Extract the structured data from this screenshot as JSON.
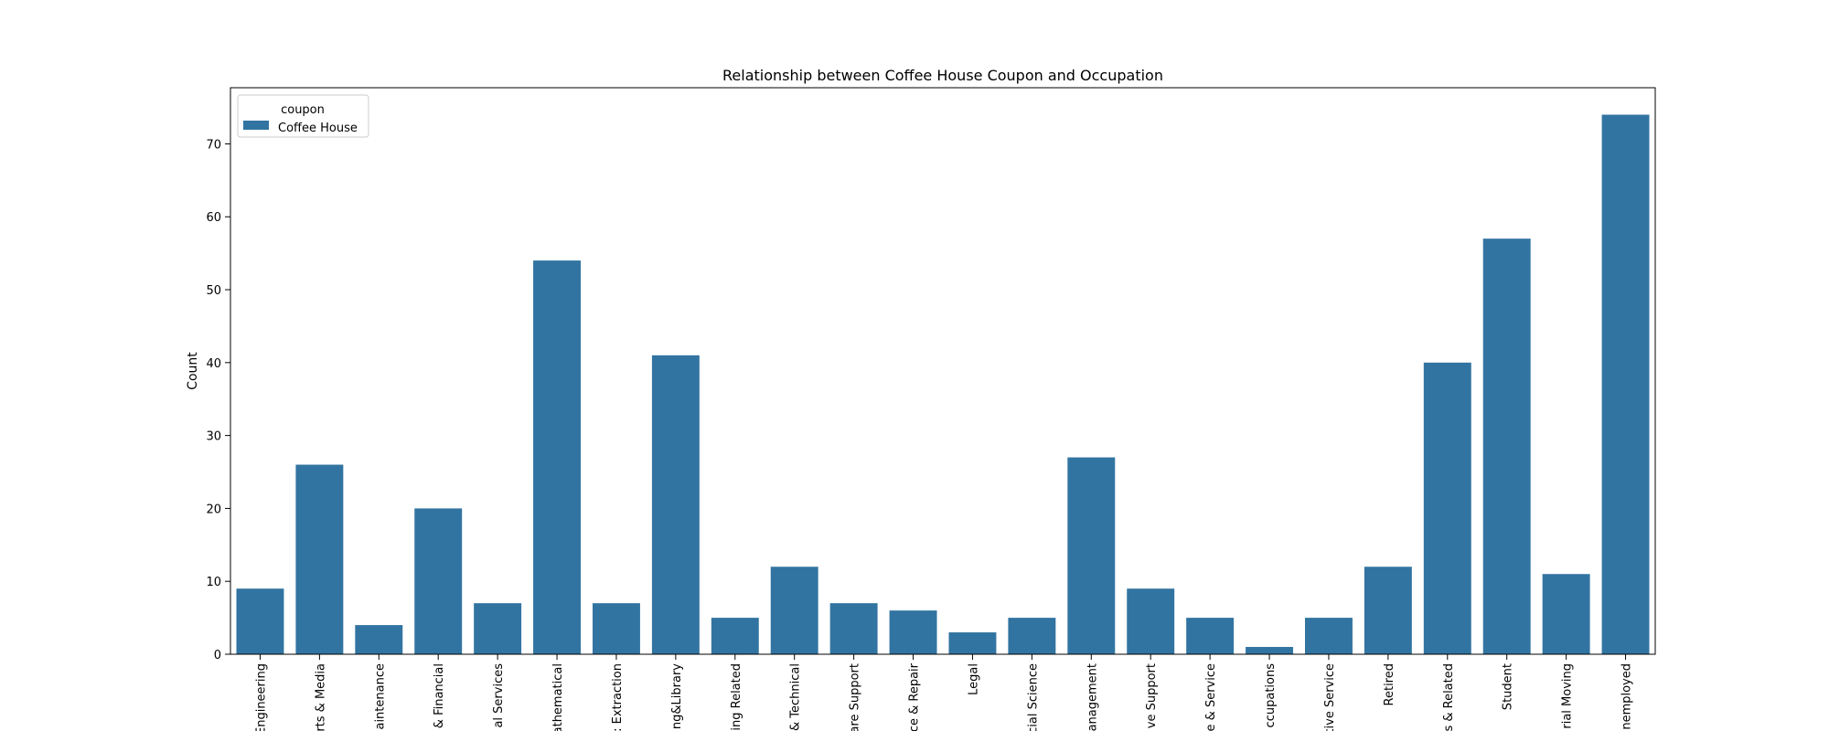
{
  "chart_data": {
    "type": "bar",
    "title": "Relationship between Coffee House Coupon and Occupation",
    "xlabel": "",
    "ylabel": "Count",
    "ylim": [
      0,
      77.7
    ],
    "yticks": [
      0,
      10,
      20,
      30,
      40,
      50,
      60,
      70
    ],
    "grid": false,
    "legend": {
      "title": "coupon",
      "placement": "top-left",
      "entries": [
        "Coffee House"
      ]
    },
    "categories": [
      "Engineering",
      "rts & Media",
      "aintenance",
      "& Financial",
      "al Services",
      "athematical",
      ": Extraction",
      "ng&Library",
      "ing Related",
      "& Technical",
      "are Support",
      "ce & Repair",
      "Legal",
      "cial Science",
      "anagement",
      "ve Support",
      "e & Service",
      "ccupations",
      "tive Service",
      "Retired",
      "s & Related",
      "Student",
      "rial Moving",
      "nemployed"
    ],
    "series": [
      {
        "name": "Coffee House",
        "color": "#3274a1",
        "values": [
          9,
          26,
          4,
          20,
          7,
          54,
          7,
          41,
          5,
          12,
          7,
          6,
          3,
          5,
          27,
          9,
          5,
          1,
          5,
          12,
          40,
          57,
          11,
          74
        ]
      }
    ]
  }
}
